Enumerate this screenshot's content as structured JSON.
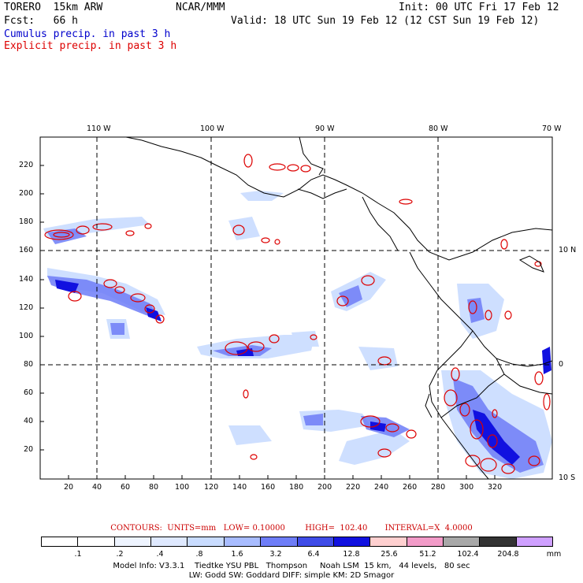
{
  "header": {
    "model_title": "TORERO  15km ARW",
    "institution": "NCAR/MMM",
    "init": "Init: 00 UTC Fri 17 Feb 12",
    "fcst_label": "Fcst:   66 h",
    "valid": "Valid: 18 UTC Sun 19 Feb 12 (12 CST Sun 19 Feb 12)",
    "field1": "Cumulus precip. in past 3 h",
    "field2": "Explicit precip. in past 3 h"
  },
  "map": {
    "x_ticks": [
      "20",
      "40",
      "60",
      "80",
      "100",
      "120",
      "140",
      "160",
      "180",
      "200",
      "220",
      "240",
      "260",
      "280",
      "300",
      "320"
    ],
    "y_ticks": [
      "20",
      "40",
      "60",
      "80",
      "100",
      "120",
      "140",
      "160",
      "180",
      "200",
      "220"
    ],
    "lon_labels": [
      "110 W",
      "100 W",
      "90 W",
      "80 W",
      "70 W"
    ],
    "lat_labels": [
      "10 N",
      "0",
      "10 S"
    ],
    "colors": {
      "coast": "#000000",
      "explicit_contour": "#dd0000",
      "grid": "#000000"
    }
  },
  "contours_line": "CONTOURS:  UNITS=mm   LOW= 0.10000        HIGH=  102.40       INTERVAL=X  4.0000",
  "colorbar": {
    "unit": "mm",
    "labels": [
      ".1",
      ".2",
      ".4",
      ".8",
      "1.6",
      "3.2",
      "6.4",
      "12.8",
      "25.6",
      "51.2",
      "102.4",
      "204.8"
    ],
    "colors": [
      "#ffffff",
      "#ffffff",
      "#eef4ff",
      "#dfe9ff",
      "#c9dcff",
      "#a8bcff",
      "#6e7df7",
      "#3f4ce8",
      "#1111e0",
      "#ffd0d0",
      "#f29bc8",
      "#a8a8a8",
      "#333333",
      "#cfa0ff"
    ]
  },
  "footer": {
    "line1": "Model Info: V3.3.1    Tiedtke YSU PBL   Thompson     Noah LSM  15 km,   44 levels,   80 sec",
    "line2": "LW: Godd SW: Goddard DIFF: simple KM: 2D Smagor"
  }
}
